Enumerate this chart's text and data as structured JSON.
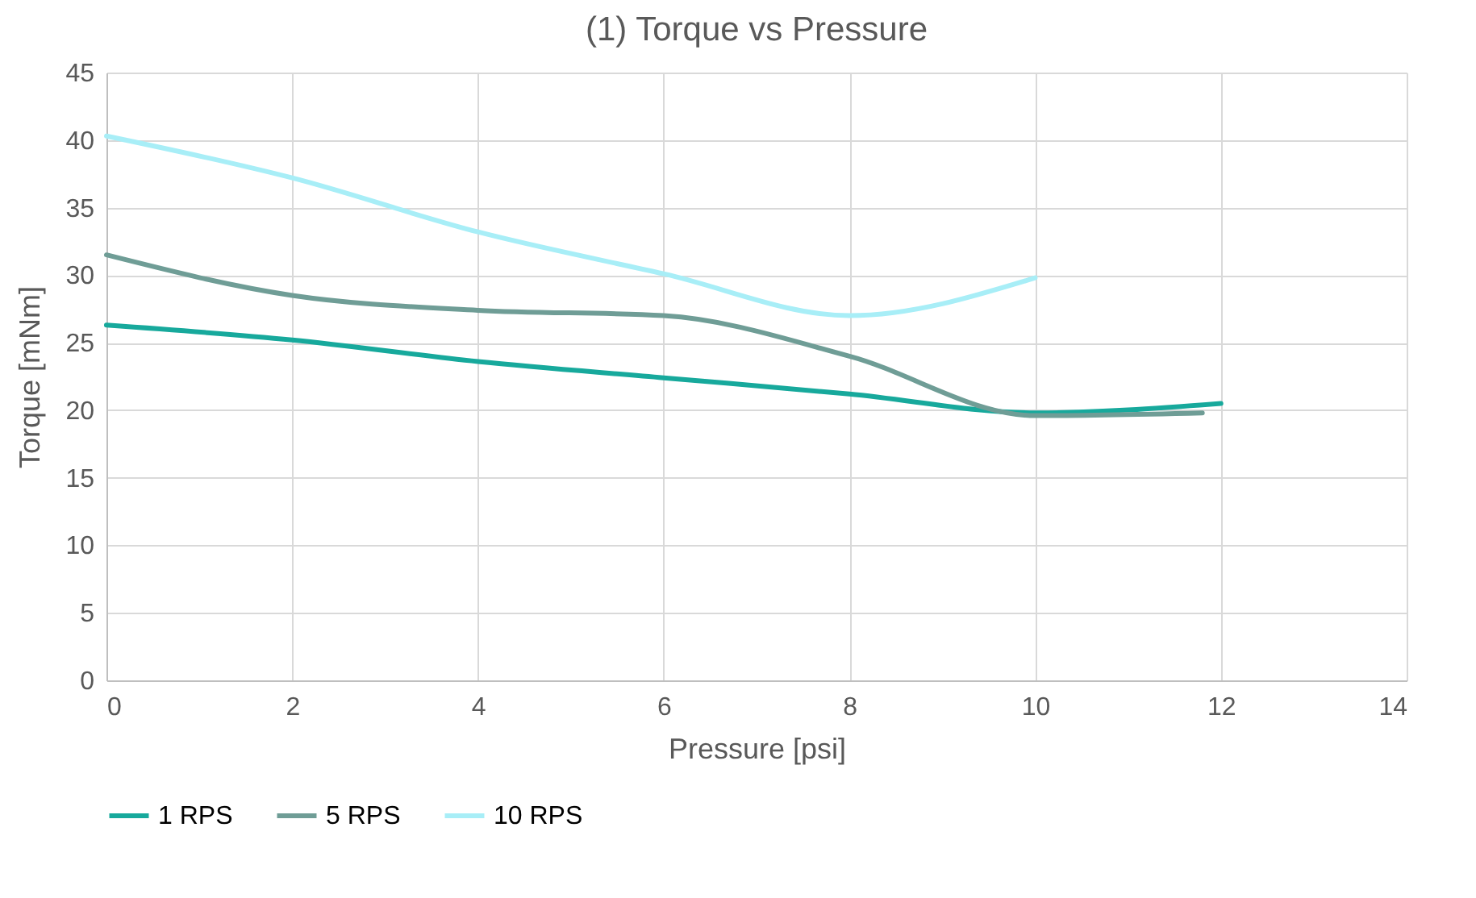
{
  "chart_data": {
    "type": "line",
    "title": "(1) Torque vs Pressure",
    "xlabel": "Pressure [psi]",
    "ylabel": "Torque [mNm]",
    "x": [
      0,
      2,
      4,
      6,
      8,
      10,
      12
    ],
    "series": [
      {
        "name": "1 RPS",
        "color": "#17a99c",
        "values": [
          26.3,
          25.2,
          23.6,
          22.4,
          21.2,
          19.8,
          20.5
        ]
      },
      {
        "name": "5 RPS",
        "color": "#6f9d96",
        "x": [
          0,
          2,
          4,
          6,
          8,
          10,
          11.8
        ],
        "values": [
          31.5,
          28.5,
          27.4,
          27.0,
          24.0,
          19.6,
          19.8
        ]
      },
      {
        "name": "10 RPS",
        "color": "#a8eef7",
        "x": [
          0,
          2,
          4,
          6,
          8,
          10
        ],
        "values": [
          40.3,
          37.2,
          33.2,
          30.1,
          27.0,
          29.8
        ]
      }
    ],
    "xlim": [
      0,
      14
    ],
    "xticks": [
      0,
      2,
      4,
      6,
      8,
      10,
      12,
      14
    ],
    "ylim": [
      0,
      45
    ],
    "yticks": [
      0,
      5,
      10,
      15,
      20,
      25,
      30,
      35,
      40,
      45
    ],
    "grid": true,
    "legend": "bottom",
    "marker": "none",
    "line_style": "solid"
  }
}
